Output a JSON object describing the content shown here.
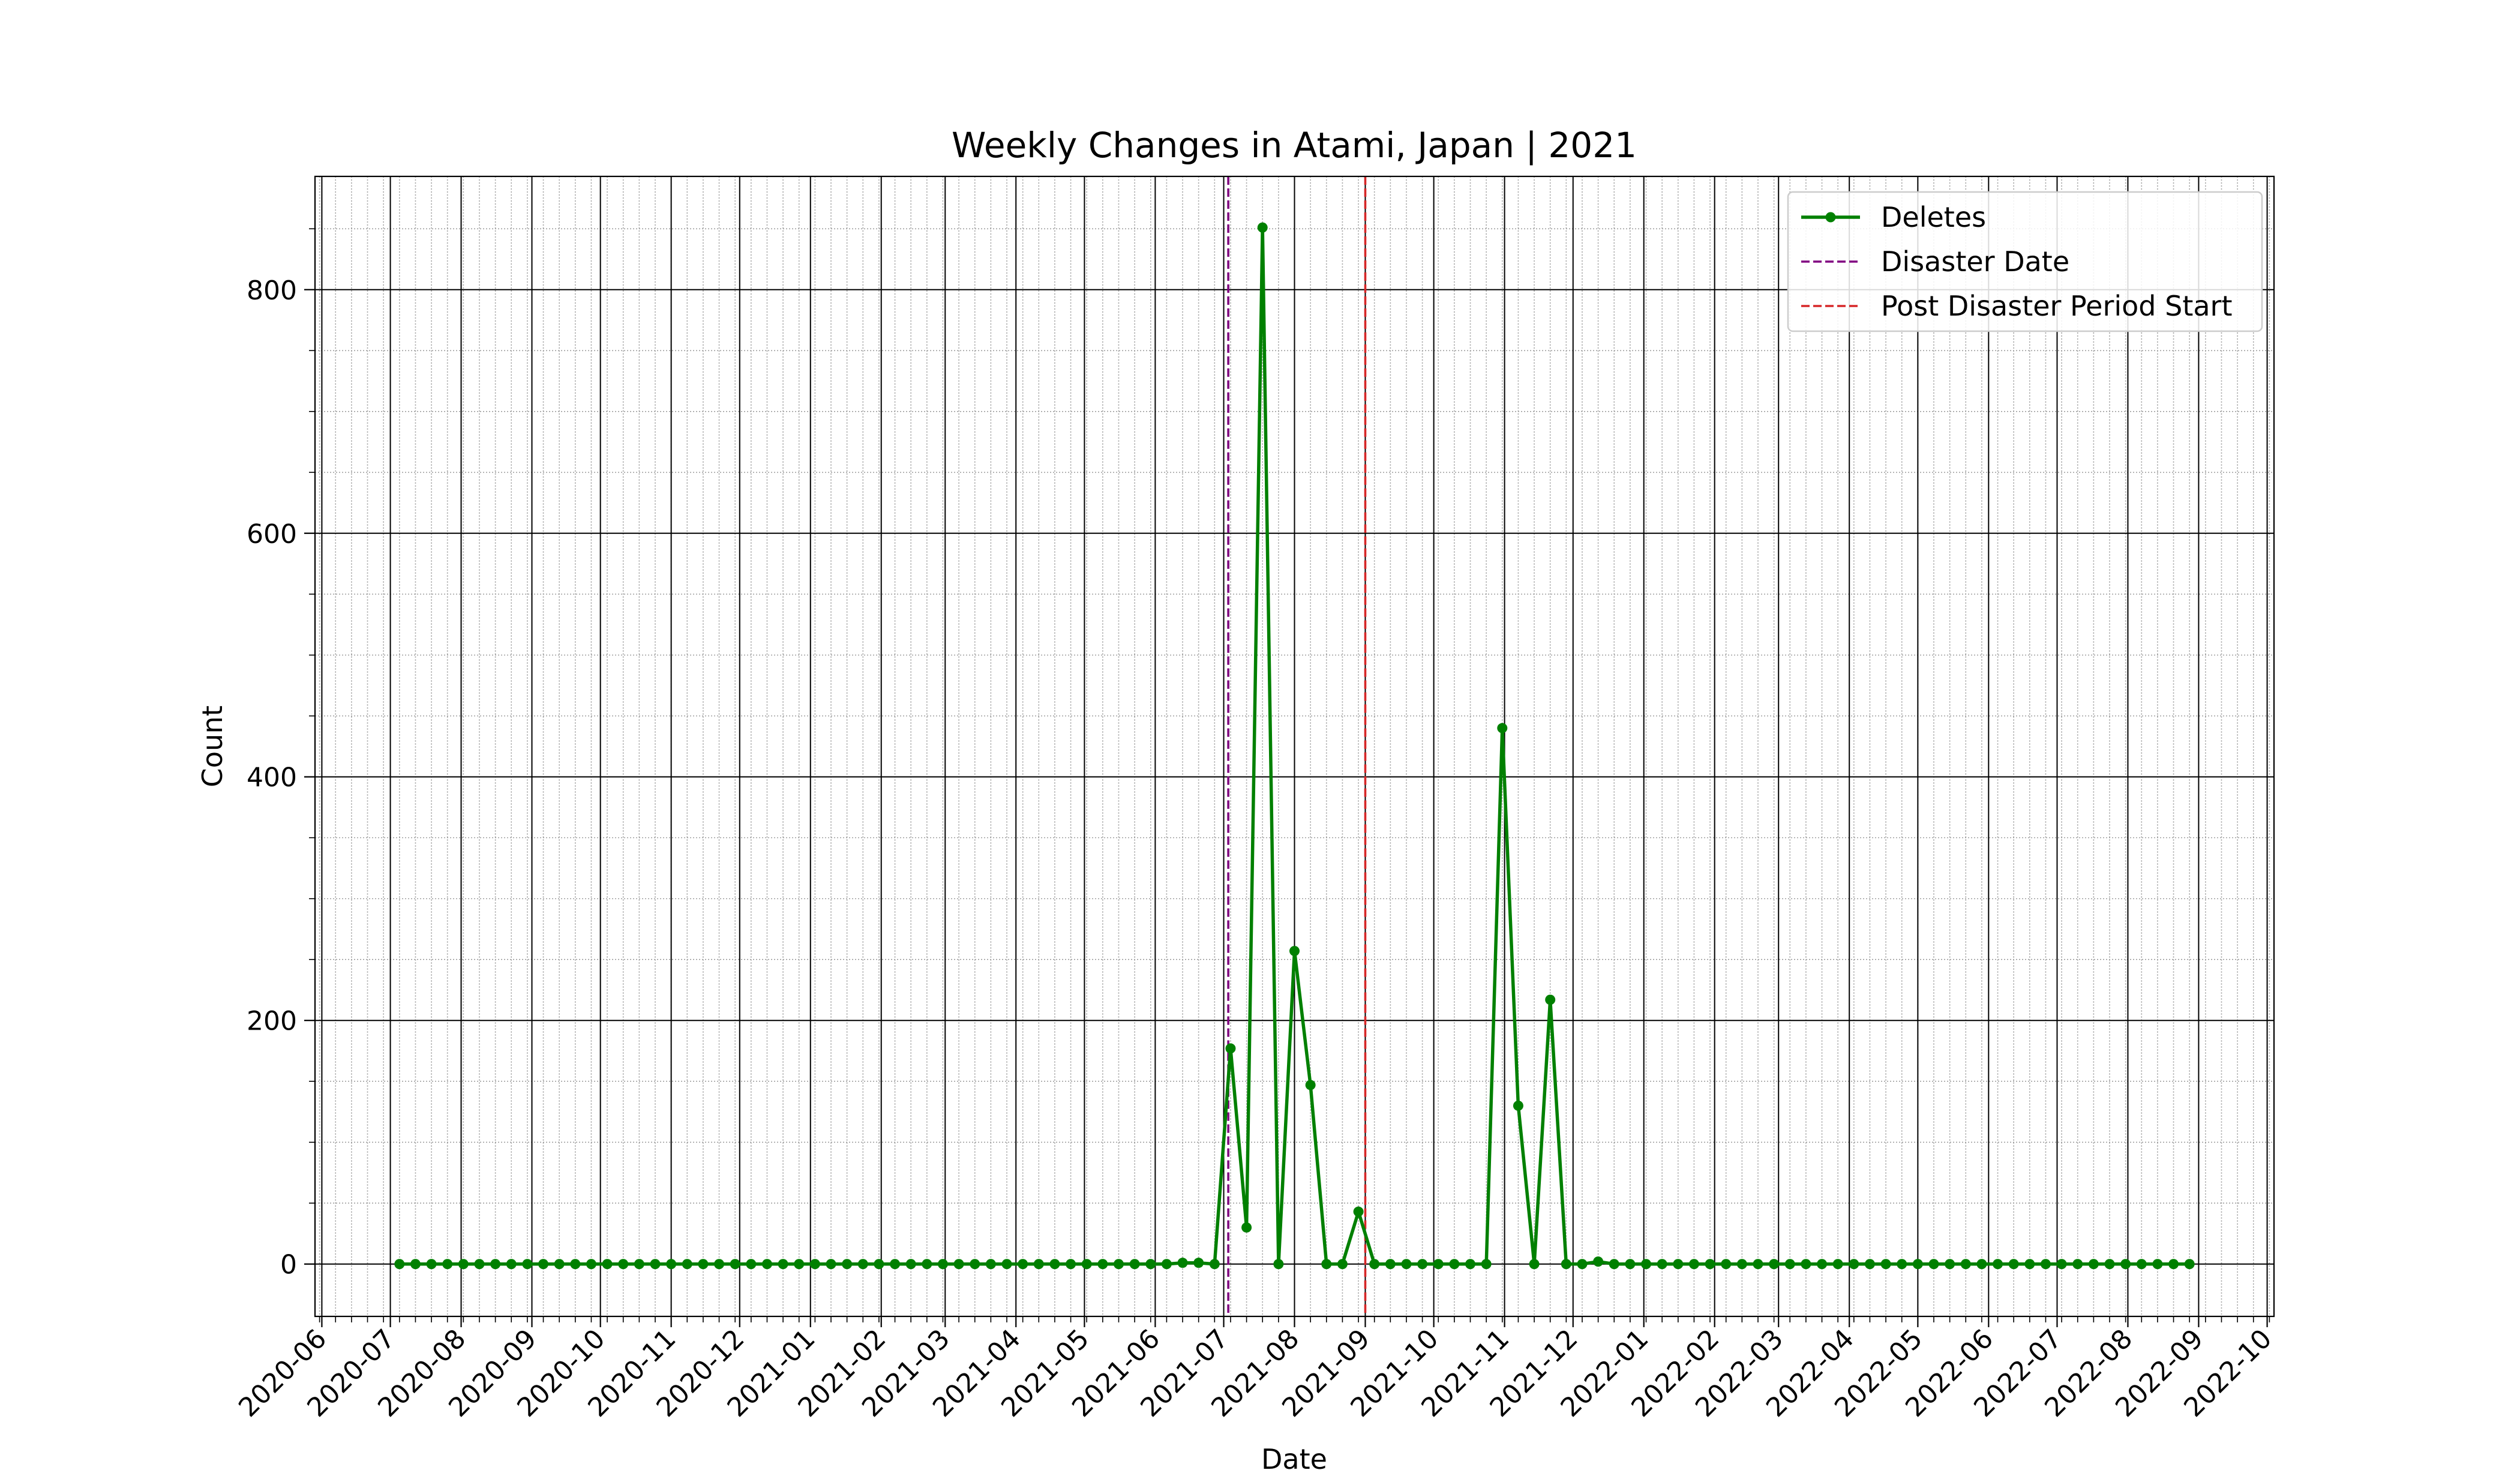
{
  "chart_data": {
    "type": "line",
    "title": "Weekly Changes in Atami, Japan | 2021",
    "xlabel": "Date",
    "ylabel": "Count",
    "x_axis": "date",
    "xlim": [
      "2020-05-29",
      "2022-10-04"
    ],
    "ylim": [
      -43,
      893
    ],
    "x_ticks": [
      "2020-06",
      "2020-07",
      "2020-08",
      "2020-09",
      "2020-10",
      "2020-11",
      "2020-12",
      "2021-01",
      "2021-02",
      "2021-03",
      "2021-04",
      "2021-05",
      "2021-06",
      "2021-07",
      "2021-08",
      "2021-09",
      "2021-10",
      "2021-11",
      "2021-12",
      "2022-01",
      "2022-02",
      "2022-03",
      "2022-04",
      "2022-05",
      "2022-06",
      "2022-07",
      "2022-08",
      "2022-09",
      "2022-10"
    ],
    "y_ticks": [
      0,
      200,
      400,
      600,
      800
    ],
    "grid": {
      "major": true,
      "minor": true
    },
    "legend_position": "upper right",
    "series": [
      {
        "name": "Deletes",
        "color": "#008000",
        "marker": "circle",
        "x": [
          "2020-07-05",
          "2020-07-12",
          "2020-07-19",
          "2020-07-26",
          "2020-08-02",
          "2020-08-09",
          "2020-08-16",
          "2020-08-23",
          "2020-08-30",
          "2020-09-06",
          "2020-09-13",
          "2020-09-20",
          "2020-09-27",
          "2020-10-04",
          "2020-10-11",
          "2020-10-18",
          "2020-10-25",
          "2020-11-01",
          "2020-11-08",
          "2020-11-15",
          "2020-11-22",
          "2020-11-29",
          "2020-12-06",
          "2020-12-13",
          "2020-12-20",
          "2020-12-27",
          "2021-01-03",
          "2021-01-10",
          "2021-01-17",
          "2021-01-24",
          "2021-01-31",
          "2021-02-07",
          "2021-02-14",
          "2021-02-21",
          "2021-02-28",
          "2021-03-07",
          "2021-03-14",
          "2021-03-21",
          "2021-03-28",
          "2021-04-04",
          "2021-04-11",
          "2021-04-18",
          "2021-04-25",
          "2021-05-02",
          "2021-05-09",
          "2021-05-16",
          "2021-05-23",
          "2021-05-30",
          "2021-06-06",
          "2021-06-13",
          "2021-06-20",
          "2021-06-27",
          "2021-07-04",
          "2021-07-11",
          "2021-07-18",
          "2021-07-25",
          "2021-08-01",
          "2021-08-08",
          "2021-08-15",
          "2021-08-22",
          "2021-08-29",
          "2021-09-05",
          "2021-09-12",
          "2021-09-19",
          "2021-09-26",
          "2021-10-03",
          "2021-10-10",
          "2021-10-17",
          "2021-10-24",
          "2021-10-31",
          "2021-11-07",
          "2021-11-14",
          "2021-11-21",
          "2021-11-28",
          "2021-12-05",
          "2021-12-12",
          "2021-12-19",
          "2021-12-26",
          "2022-01-02",
          "2022-01-09",
          "2022-01-16",
          "2022-01-23",
          "2022-01-30",
          "2022-02-06",
          "2022-02-13",
          "2022-02-20",
          "2022-02-27",
          "2022-03-06",
          "2022-03-13",
          "2022-03-20",
          "2022-03-27",
          "2022-04-03",
          "2022-04-10",
          "2022-04-17",
          "2022-04-24",
          "2022-05-01",
          "2022-05-08",
          "2022-05-15",
          "2022-05-22",
          "2022-05-29",
          "2022-06-05",
          "2022-06-12",
          "2022-06-19",
          "2022-06-26",
          "2022-07-03",
          "2022-07-10",
          "2022-07-17",
          "2022-07-24",
          "2022-07-31",
          "2022-08-07",
          "2022-08-14",
          "2022-08-21",
          "2022-08-28"
        ],
        "values": [
          0,
          0,
          0,
          0,
          0,
          0,
          0,
          0,
          0,
          0,
          0,
          0,
          0,
          0,
          0,
          0,
          0,
          0,
          0,
          0,
          0,
          0,
          0,
          0,
          0,
          0,
          0,
          0,
          0,
          0,
          0,
          0,
          0,
          0,
          0,
          0,
          0,
          0,
          0,
          0,
          0,
          0,
          0,
          0,
          0,
          0,
          0,
          0,
          0,
          1,
          1,
          0,
          177,
          30,
          851,
          0,
          257,
          147,
          0,
          0,
          43,
          0,
          0,
          0,
          0,
          0,
          0,
          0,
          0,
          440,
          130,
          0,
          217,
          0,
          0,
          2,
          0,
          0,
          0,
          0,
          0,
          0,
          0,
          0,
          0,
          0,
          0,
          0,
          0,
          0,
          0,
          0,
          0,
          0,
          0,
          0,
          0,
          0,
          0,
          0,
          0,
          0,
          0,
          0,
          0,
          0,
          0,
          0,
          0,
          0,
          0,
          0,
          0
        ]
      }
    ],
    "vlines": [
      {
        "name": "Disaster Date",
        "date": "2021-07-03",
        "color": "#800080",
        "style": "dashed"
      },
      {
        "name": "Post Disaster Period Start",
        "date": "2021-09-01",
        "color": "#d62728",
        "style": "dashed"
      }
    ]
  }
}
